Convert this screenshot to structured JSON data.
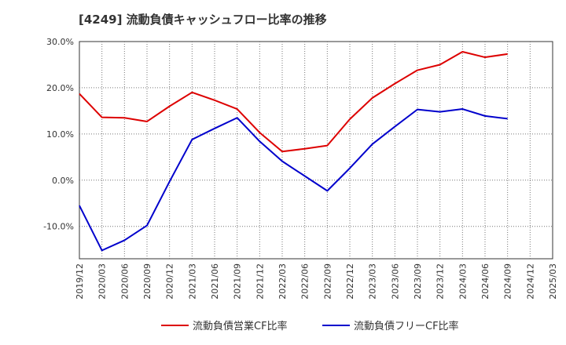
{
  "chart_data": {
    "type": "line",
    "title": "[4249]  流動負債キャッシュフロー比率の推移",
    "xlabel": "",
    "ylabel": "",
    "x": [
      "2019/12",
      "2020/03",
      "2020/06",
      "2020/09",
      "2020/12",
      "2021/03",
      "2021/06",
      "2021/09",
      "2021/12",
      "2022/03",
      "2022/06",
      "2022/09",
      "2022/12",
      "2023/03",
      "2023/06",
      "2023/09",
      "2023/12",
      "2024/03",
      "2024/06",
      "2024/09",
      "2024/12",
      "2025/03"
    ],
    "y_ticks": [
      "30.0%",
      "20.0%",
      "10.0%",
      "0.0%",
      "-10.0%"
    ],
    "ylim": [
      -17,
      30
    ],
    "grid": true,
    "legend_position": "bottom",
    "series": [
      {
        "name": "流動負債営業CF比率",
        "color": "#dd0000",
        "values": [
          18.7,
          13.6,
          13.5,
          12.7,
          16.0,
          19.0,
          17.3,
          15.4,
          10.3,
          6.2,
          6.8,
          7.5,
          13.2,
          17.8,
          20.9,
          23.8,
          25.0,
          27.8,
          26.6,
          27.3,
          null,
          null
        ]
      },
      {
        "name": "流動負債フリーCF比率",
        "color": "#0000cc",
        "values": [
          -5.5,
          -15.2,
          -13.0,
          -9.8,
          -0.3,
          8.8,
          11.2,
          13.5,
          8.4,
          4.1,
          0.9,
          -2.3,
          2.6,
          7.8,
          11.6,
          15.3,
          14.8,
          15.4,
          13.9,
          13.3,
          null,
          null
        ]
      }
    ]
  }
}
